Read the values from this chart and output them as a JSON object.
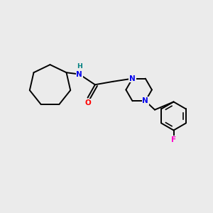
{
  "background_color": "#ebebeb",
  "atom_colors": {
    "C": "#000000",
    "N": "#0000ee",
    "O": "#ff0000",
    "F": "#ff00cc",
    "H": "#008080"
  },
  "bond_color": "#000000",
  "bond_width": 1.4,
  "font_size": 7.5
}
